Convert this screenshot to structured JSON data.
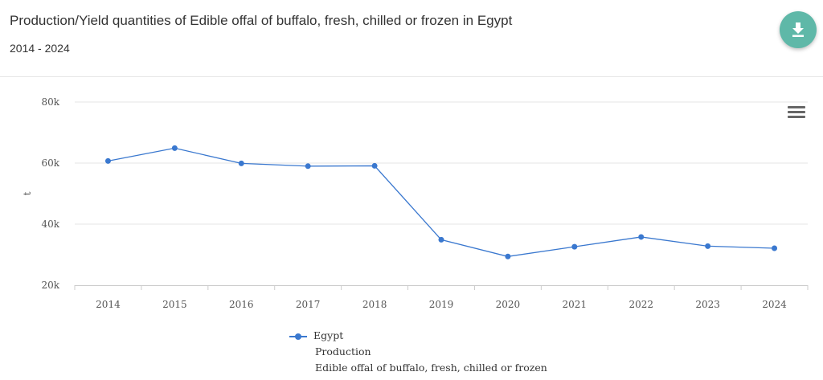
{
  "header": {
    "title": "Production/Yield quantities of Edible offal of buffalo, fresh, chilled or frozen in Egypt",
    "subtitle": "2014 - 2024"
  },
  "colors": {
    "series": "#3a78cf",
    "download_button": "#5fb8a8",
    "grid": "#e6e6e6",
    "axis_text": "#555555"
  },
  "icons": {
    "download": "download-icon",
    "menu": "hamburger-menu-icon"
  },
  "chart_data": {
    "type": "line",
    "title": "Production/Yield quantities of Edible offal of buffalo, fresh, chilled or frozen in Egypt",
    "subtitle": "2014 - 2024",
    "xlabel": "",
    "ylabel": "t",
    "ylim": [
      20000,
      80000
    ],
    "yticks": [
      20000,
      40000,
      60000,
      80000
    ],
    "ytick_labels": [
      "20k",
      "40k",
      "60k",
      "80k"
    ],
    "categories": [
      "2014",
      "2015",
      "2016",
      "2017",
      "2018",
      "2019",
      "2020",
      "2021",
      "2022",
      "2023",
      "2024"
    ],
    "series": [
      {
        "name": "Egypt",
        "values": [
          60700,
          64900,
          59900,
          59000,
          59100,
          34900,
          29400,
          32600,
          35800,
          32800,
          32100
        ]
      }
    ],
    "grid": true,
    "legend": {
      "position": "bottom-center",
      "lines": [
        "Egypt",
        "Production",
        "Edible offal of buffalo, fresh, chilled or frozen"
      ]
    }
  }
}
